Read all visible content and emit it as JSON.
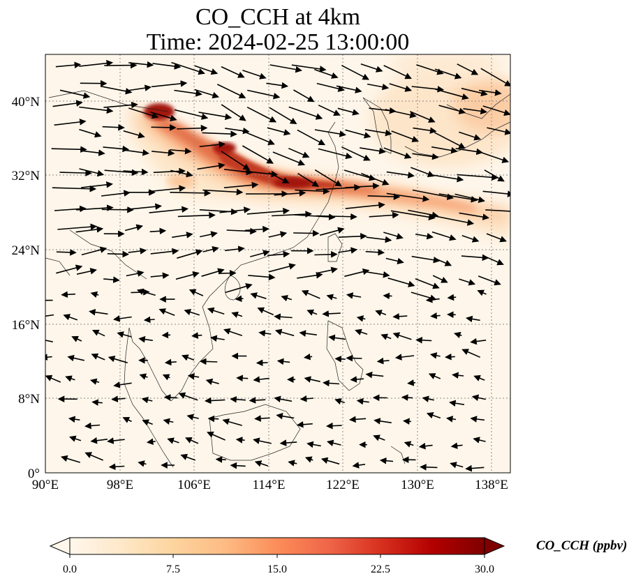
{
  "title_line1": "CO_CCH at 4km",
  "title_line2": "Time: 2024-02-25 13:00:00",
  "map": {
    "projection": "PlateCarree",
    "lon_range": [
      90,
      140
    ],
    "lat_range": [
      0,
      45
    ],
    "x_ticks": [
      "90°E",
      "98°E",
      "106°E",
      "114°E",
      "122°E",
      "130°E",
      "138°E"
    ],
    "y_ticks": [
      "0°",
      "8°N",
      "16°N",
      "24°N",
      "32°N",
      "40°N"
    ],
    "gridlines": true,
    "coastlines": true,
    "wind_vectors": true
  },
  "colorbar": {
    "label": "CO_CCH (ppbv)",
    "cmap": "OrRd",
    "range": [
      0,
      30
    ],
    "ticks": [
      "0.0",
      "7.5",
      "15.0",
      "22.5",
      "30.0"
    ],
    "extend": "both",
    "colors": [
      "#fff7ec",
      "#fee8c8",
      "#fdd49e",
      "#fdbb84",
      "#fc8d59",
      "#ef6548",
      "#d7301f",
      "#b30000",
      "#7f0000"
    ]
  },
  "plume": {
    "description_colors": {
      "core": "#a3150f",
      "mid": "#e0643f",
      "edge": "#fbc49a"
    }
  }
}
